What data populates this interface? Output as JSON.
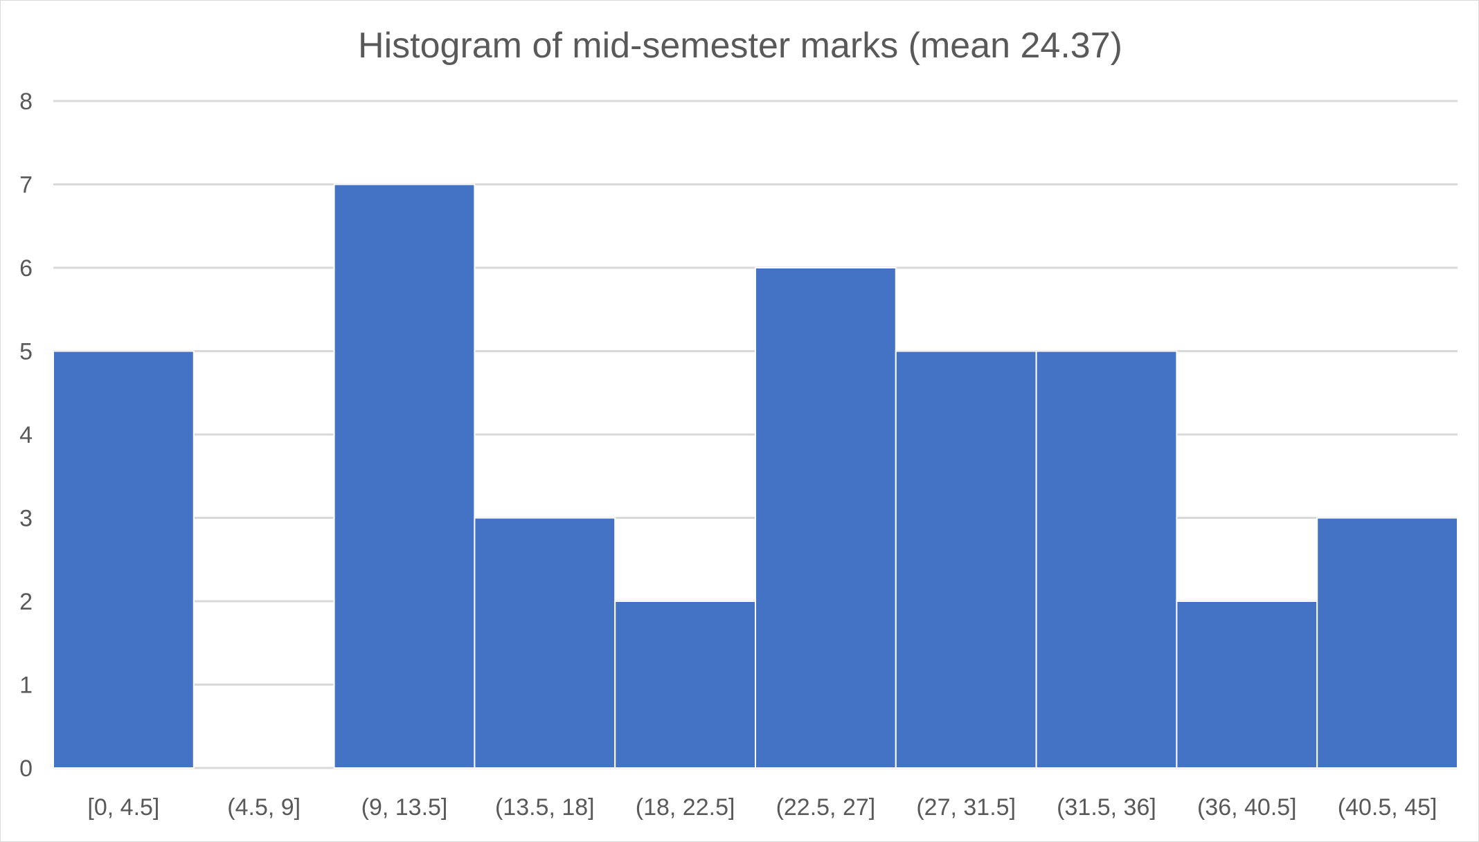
{
  "chart_data": {
    "type": "bar",
    "title": "Histogram of mid-semester marks (mean 24.37)",
    "xlabel": "",
    "ylabel": "",
    "categories": [
      "[0, 4.5]",
      "(4.5, 9]",
      "(9, 13.5]",
      "(13.5, 18]",
      "(18, 22.5]",
      "(22.5, 27]",
      "(27, 31.5]",
      "(31.5, 36]",
      "(36, 40.5]",
      "(40.5, 45]"
    ],
    "values": [
      5,
      0,
      7,
      3,
      2,
      6,
      5,
      5,
      2,
      3
    ],
    "ylim": [
      0,
      8
    ],
    "yticks": [
      0,
      1,
      2,
      3,
      4,
      5,
      6,
      7,
      8
    ],
    "grid": true,
    "legend": "none",
    "bar_color": "#4472C4",
    "gridline_color": "#D9D9D9",
    "text_color": "#595959"
  }
}
